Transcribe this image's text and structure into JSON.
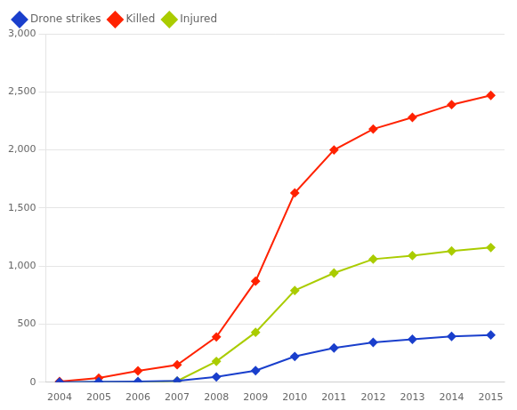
{
  "chart_data": {
    "type": "line",
    "x": [
      2004,
      2005,
      2006,
      2007,
      2008,
      2009,
      2010,
      2011,
      2012,
      2013,
      2014,
      2015
    ],
    "series": [
      {
        "name": "Drone strikes",
        "color": "#1a3fcc",
        "values": [
          1,
          4,
          6,
          11,
          46,
          100,
          222,
          295,
          343,
          370,
          395,
          407
        ]
      },
      {
        "name": "Killed",
        "color": "#ff2200",
        "values": [
          6,
          36,
          98,
          150,
          390,
          870,
          1630,
          2000,
          2180,
          2280,
          2390,
          2470
        ]
      },
      {
        "name": "Injured",
        "color": "#aacc00",
        "values": [
          0,
          0,
          0,
          10,
          180,
          430,
          790,
          940,
          1060,
          1090,
          1130,
          1160
        ]
      }
    ],
    "marker": "diamond",
    "xlim": [
      2003.65,
      2015.35
    ],
    "xticks": [
      2004,
      2005,
      2006,
      2007,
      2008,
      2009,
      2010,
      2011,
      2012,
      2013,
      2014,
      2015
    ],
    "ylim": [
      0,
      3000
    ],
    "yticks": [
      0,
      500,
      {
        "value": 1000,
        "label": "1,000"
      },
      {
        "value": 1500,
        "label": "1,500"
      },
      {
        "value": 2000,
        "label": "2,000"
      },
      {
        "value": 2500,
        "label": "2,500"
      },
      {
        "value": 3000,
        "label": "3,000"
      }
    ],
    "grid": "y",
    "legend": "upper left"
  }
}
